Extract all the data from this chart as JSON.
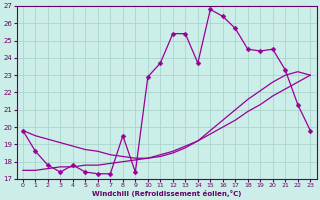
{
  "xlabel": "Windchill (Refroidissement éolien,°C)",
  "background_color": "#cceee8",
  "grid_color": "#aad4cc",
  "line_color": "#990099",
  "xlim": [
    -0.5,
    23.5
  ],
  "ylim": [
    17,
    27
  ],
  "xticks": [
    0,
    1,
    2,
    3,
    4,
    5,
    6,
    7,
    8,
    9,
    10,
    11,
    12,
    13,
    14,
    15,
    16,
    17,
    18,
    19,
    20,
    21,
    22,
    23
  ],
  "yticks": [
    17,
    18,
    19,
    20,
    21,
    22,
    23,
    24,
    25,
    26,
    27
  ],
  "line1_x": [
    0,
    1,
    2,
    3,
    4,
    5,
    6,
    7,
    8,
    9,
    10,
    11,
    12,
    13,
    14,
    15,
    16,
    17,
    18,
    19,
    20,
    21,
    22,
    23
  ],
  "line1_y": [
    19.8,
    18.6,
    17.8,
    17.4,
    17.8,
    17.4,
    17.3,
    17.3,
    19.5,
    17.4,
    22.9,
    23.7,
    25.4,
    25.4,
    23.7,
    26.8,
    26.4,
    25.7,
    24.5,
    24.4,
    24.5,
    23.3,
    21.3,
    19.8
  ],
  "line2_x": [
    0,
    1,
    2,
    3,
    4,
    5,
    6,
    7,
    8,
    9,
    10,
    11,
    12,
    13,
    14,
    15,
    16,
    17,
    18,
    19,
    20,
    21,
    22,
    23
  ],
  "line2_y": [
    19.8,
    19.5,
    19.3,
    19.1,
    18.9,
    18.7,
    18.6,
    18.4,
    18.3,
    18.2,
    18.2,
    18.3,
    18.5,
    18.8,
    19.2,
    19.8,
    20.4,
    21.0,
    21.6,
    22.1,
    22.6,
    23.0,
    23.2,
    23.0
  ],
  "line3_x": [
    0,
    1,
    2,
    3,
    4,
    5,
    6,
    7,
    8,
    9,
    10,
    11,
    12,
    13,
    14,
    15,
    16,
    17,
    18,
    19,
    20,
    21,
    22,
    23
  ],
  "line3_y": [
    17.5,
    17.5,
    17.6,
    17.7,
    17.7,
    17.8,
    17.8,
    17.9,
    18.0,
    18.1,
    18.2,
    18.4,
    18.6,
    18.9,
    19.2,
    19.6,
    20.0,
    20.4,
    20.9,
    21.3,
    21.8,
    22.2,
    22.6,
    23.0
  ],
  "markersize": 2.5
}
